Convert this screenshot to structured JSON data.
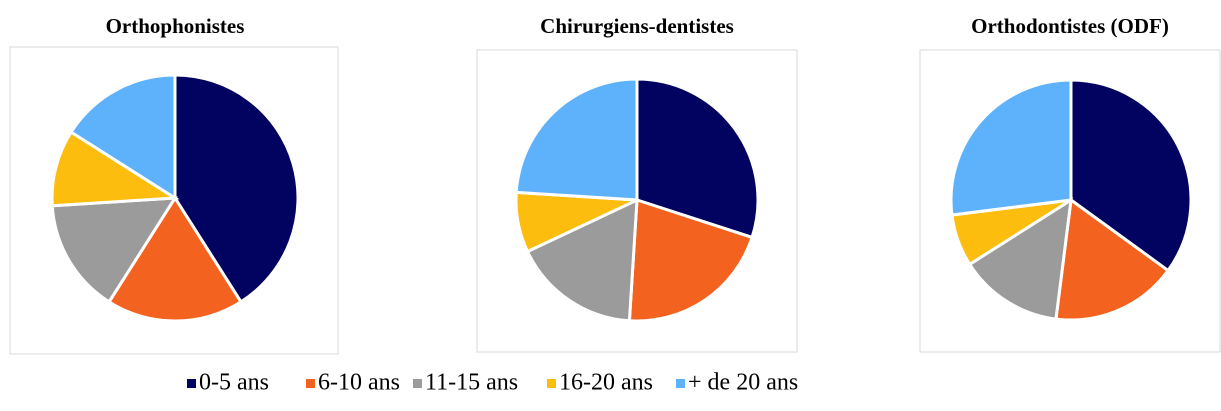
{
  "chart_data": [
    {
      "type": "pie",
      "title": "Orthophonistes",
      "values": [
        41,
        18,
        15,
        10,
        16
      ]
    },
    {
      "type": "pie",
      "title": "Chirurgiens-dentistes",
      "values": [
        30,
        21,
        17,
        8,
        24
      ]
    },
    {
      "type": "pie",
      "title": "Orthodontistes (ODF)",
      "values": [
        35,
        17,
        14,
        7,
        27
      ]
    }
  ],
  "legend": {
    "labels": [
      "0-5 ans",
      "6-10 ans",
      "11-15 ans",
      "16-20 ans",
      "+ de 20 ans"
    ],
    "colors": [
      "#020260",
      "#f4621f",
      "#9b9b9b",
      "#fdbd0e",
      "#5db2fb"
    ]
  }
}
